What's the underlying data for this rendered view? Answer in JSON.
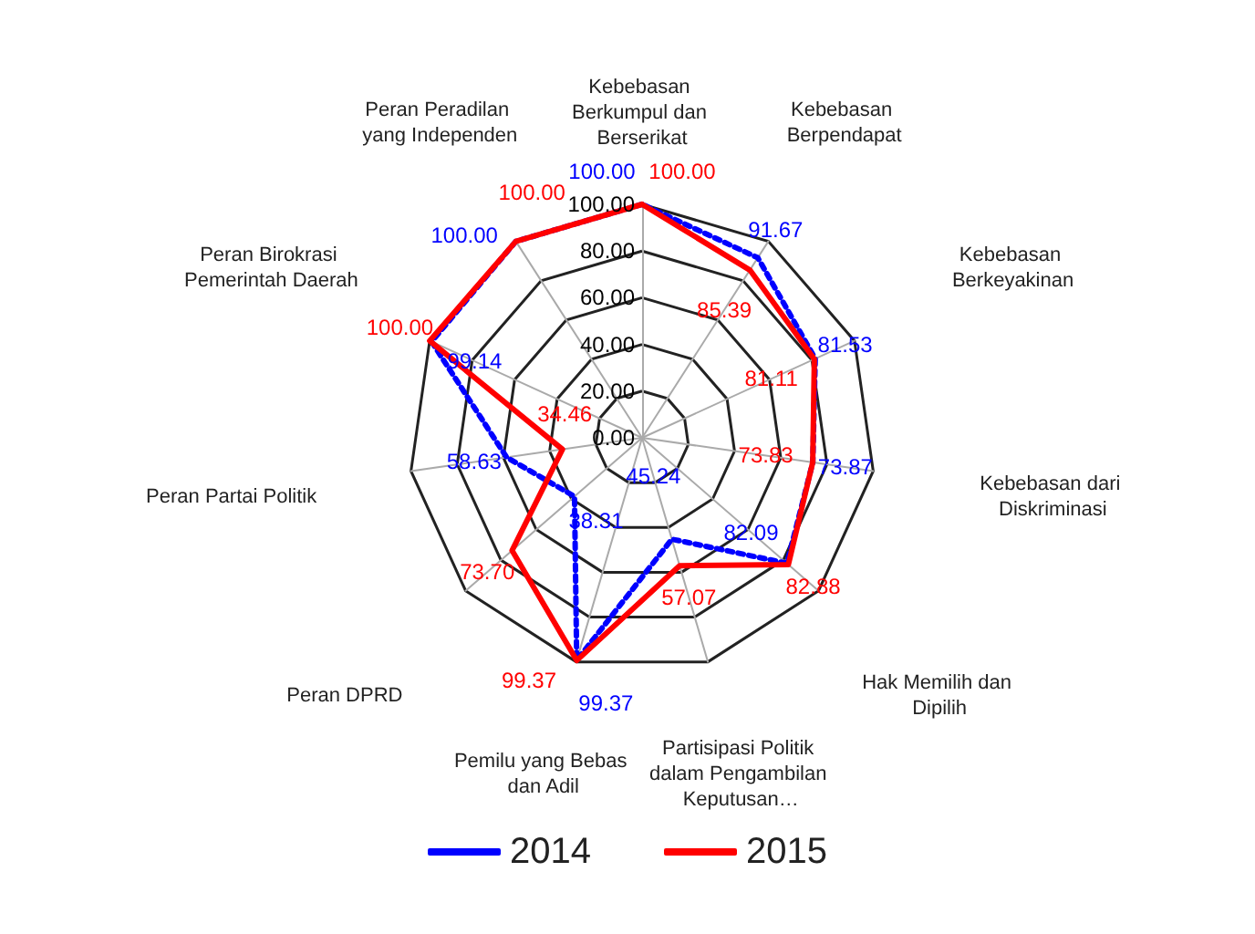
{
  "chart_data": {
    "type": "radar",
    "categories": [
      "Kebebasan Berkumpul dan Berserikat",
      "Kebebasan Berpendapat",
      "Kebebasan Berkeyakinan",
      "Kebebasan dari Diskriminasi",
      "Hak Memilih dan Dipilih",
      "Partisipasi Politik dalam Pengambilan Keputusan…",
      "Pemilu yang Bebas dan Adil",
      "Peran DPRD",
      "Peran Partai Politik",
      "Peran Birokrasi Pemerintah Daerah",
      "Peran Peradilan yang Independen"
    ],
    "series": [
      {
        "name": "2014",
        "color": "#0000ff",
        "line_style": "dotted",
        "values": [
          100,
          91.67,
          81.53,
          73.87,
          82.09,
          45.24,
          99.37,
          38.31,
          58.63,
          99.14,
          100
        ],
        "value_labels": [
          "100.00",
          "91.67",
          "81.53",
          "73.87",
          "82.09",
          "45.24",
          "99.37",
          "38.31",
          "58.63",
          "99.14",
          "100.00"
        ]
      },
      {
        "name": "2015",
        "color": "#ff0000",
        "line_style": "solid",
        "values": [
          100,
          85.39,
          81.11,
          73.83,
          82.88,
          57.07,
          99.37,
          73.7,
          34.46,
          100,
          100
        ],
        "value_labels": [
          "100.00",
          "85.39",
          "81.11",
          "73.83",
          "82.88",
          "57.07",
          "99.37",
          "73.70",
          "34.46",
          "100.00",
          "100.00"
        ]
      }
    ],
    "ylim": [
      0,
      100
    ],
    "yticks": [
      {
        "value": 0,
        "label": "0.00"
      },
      {
        "value": 20,
        "label": "20.00"
      },
      {
        "value": 40,
        "label": "40.00"
      },
      {
        "value": 60,
        "label": "60.00"
      },
      {
        "value": 80,
        "label": "80.00"
      },
      {
        "value": 100,
        "label": "100.00"
      }
    ],
    "grid": true,
    "legend": "bottom",
    "marker": "none"
  }
}
